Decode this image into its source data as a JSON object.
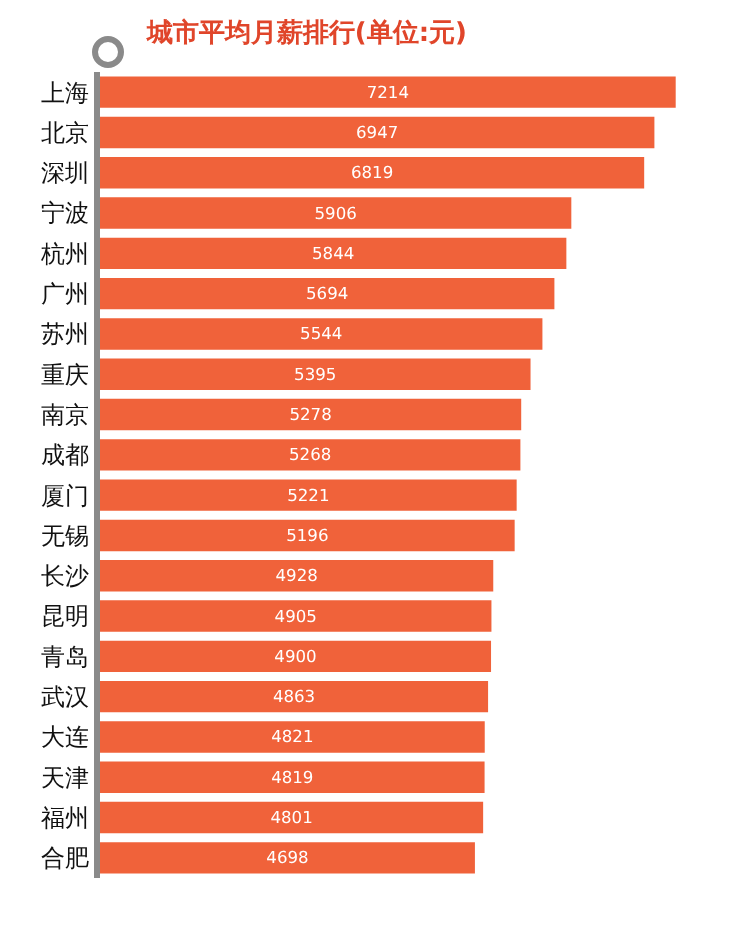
{
  "chart_data": {
    "type": "bar",
    "orientation": "horizontal",
    "title": "城市平均月薪排行(单位:元)",
    "categories": [
      "上海",
      "北京",
      "深圳",
      "宁波",
      "杭州",
      "广州",
      "苏州",
      "重庆",
      "南京",
      "成都",
      "厦门",
      "无锡",
      "长沙",
      "昆明",
      "青岛",
      "武汉",
      "大连",
      "天津",
      "福州",
      "合肥"
    ],
    "values": [
      7214,
      6947,
      6819,
      5906,
      5844,
      5694,
      5544,
      5395,
      5278,
      5268,
      5221,
      5196,
      4928,
      4905,
      4900,
      4863,
      4821,
      4819,
      4801,
      4698
    ],
    "color": "#f0623a",
    "data_labels": true
  }
}
